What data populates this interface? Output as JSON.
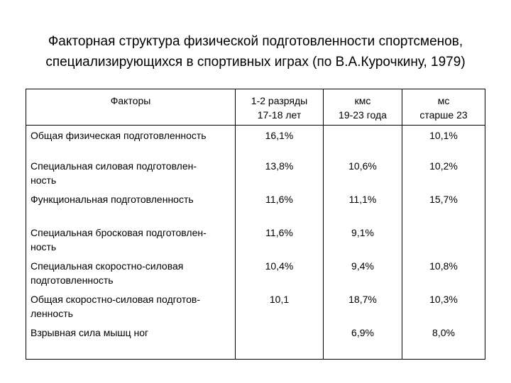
{
  "title": {
    "line1": "Факторная структура физической подготовленности спортсменов,",
    "line2": "специализирующихся в спортивных играх (по В.А.Курочкину, 1979)"
  },
  "table": {
    "headers": [
      [
        "Факторы",
        ""
      ],
      [
        "1-2 разряды",
        "17-18 лет"
      ],
      [
        "кмс",
        "19-23 года"
      ],
      [
        "мс",
        "старше 23"
      ]
    ],
    "rows": [
      {
        "factor": [
          "Общая физическая подготовленность"
        ],
        "values": [
          "16,1%",
          "",
          "10,1%"
        ]
      },
      {
        "factor": [
          "Специальная силовая подготовлен-",
          "ность"
        ],
        "values": [
          "13,8%",
          "10,6%",
          "10,2%"
        ]
      },
      {
        "factor": [
          "Функциональная подготовленность"
        ],
        "values": [
          "11,6%",
          "11,1%",
          "15,7%"
        ]
      },
      {
        "factor": [
          "Специальная бросковая подготовлен-",
          "ность"
        ],
        "values": [
          "11,6%",
          "9,1%",
          ""
        ]
      },
      {
        "factor": [
          "Специальная скоростно-силовая",
          "подготовленность"
        ],
        "values": [
          "10,4%",
          "9,4%",
          "10,8%"
        ]
      },
      {
        "factor": [
          "Общая скоростно-силовая подготов-",
          "ленность"
        ],
        "values": [
          "10,1",
          "18,7%",
          "10,3%"
        ]
      },
      {
        "factor": [
          "Взрывная сила мышц ног"
        ],
        "values": [
          "",
          "6,9%",
          "8,0%"
        ]
      }
    ]
  }
}
